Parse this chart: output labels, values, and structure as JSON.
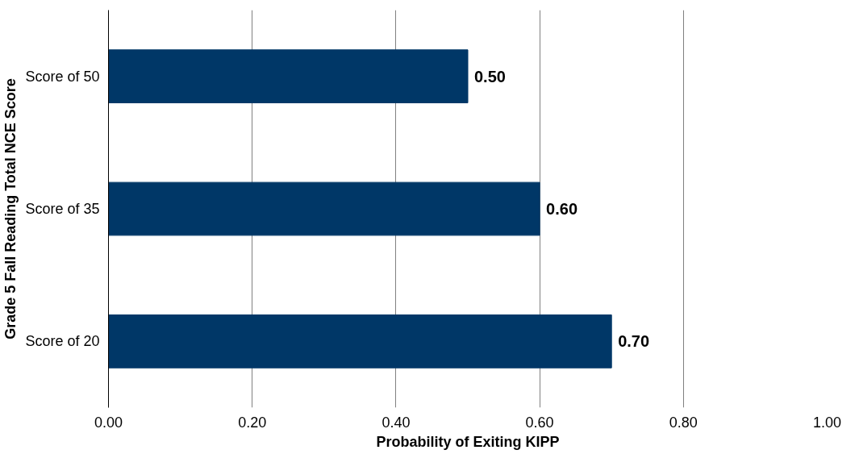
{
  "chart_data": {
    "type": "bar",
    "orientation": "horizontal",
    "xlabel": "Probability of Exiting KIPP",
    "ylabel": "Grade 5 Fall Reading Total NCE Score",
    "categories": [
      "Score of 50",
      "Score of 35",
      "Score of 20"
    ],
    "values": [
      0.5,
      0.6,
      0.7
    ],
    "value_labels": [
      "0.50",
      "0.60",
      "0.70"
    ],
    "color": "#003767",
    "xlim": [
      0,
      1
    ],
    "xticks": [
      {
        "value": 0,
        "label": "0.00"
      },
      {
        "value": 0.2,
        "label": "0.20"
      },
      {
        "value": 0.4,
        "label": "0.40"
      },
      {
        "value": 0.6,
        "label": "0.60"
      },
      {
        "value": 0.8,
        "label": "0.80"
      },
      {
        "value": 1,
        "label": "1.00"
      }
    ],
    "grid": "x"
  }
}
